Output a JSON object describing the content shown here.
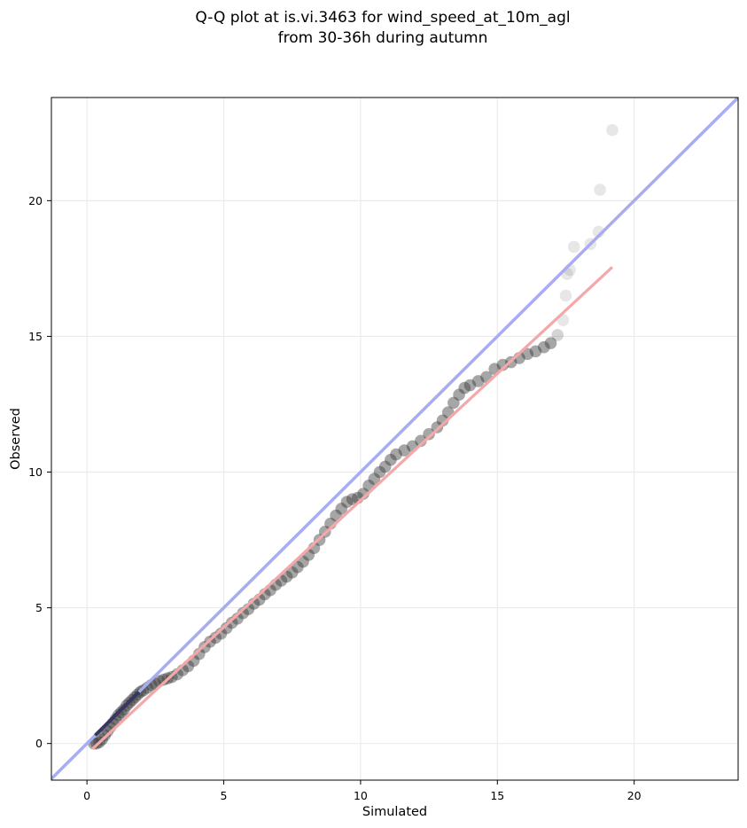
{
  "chart_data": {
    "type": "scatter",
    "title": [
      "Q-Q plot at is.vi.3463 for wind_speed_at_10m_agl",
      "from 30-36h during autumn"
    ],
    "xlabel": "Simulated",
    "ylabel": "Observed",
    "xlim": [
      -1.3,
      23.8
    ],
    "ylim": [
      -1.35,
      23.8
    ],
    "xticks": [
      0,
      5,
      10,
      15,
      20
    ],
    "yticks": [
      0,
      5,
      10,
      15,
      20
    ],
    "grid": true,
    "colors": {
      "points": "#3a3a3a",
      "diagonal": "#a8acf2",
      "fit": "#f4a8a8",
      "lower_segment": "#1a1a3c"
    },
    "identity_line": {
      "name": "",
      "slope": 1,
      "intercept": 0
    },
    "fit_line": {
      "name": "",
      "x": [
        0.2,
        19.2
      ],
      "y": [
        -0.2,
        17.55
      ]
    },
    "series": [
      {
        "name": "",
        "points": [
          [
            0.25,
            0.0
          ],
          [
            0.35,
            0.0
          ],
          [
            0.45,
            0.05
          ],
          [
            0.55,
            0.15
          ],
          [
            0.65,
            0.3
          ],
          [
            0.75,
            0.45
          ],
          [
            0.85,
            0.6
          ],
          [
            0.95,
            0.75
          ],
          [
            1.05,
            0.9
          ],
          [
            1.15,
            1.05
          ],
          [
            1.25,
            1.15
          ],
          [
            1.35,
            1.25
          ],
          [
            1.45,
            1.4
          ],
          [
            1.55,
            1.5
          ],
          [
            1.65,
            1.6
          ],
          [
            1.75,
            1.7
          ],
          [
            1.85,
            1.8
          ],
          [
            1.95,
            1.9
          ],
          [
            2.05,
            1.95
          ],
          [
            2.2,
            2.05
          ],
          [
            2.35,
            2.15
          ],
          [
            2.5,
            2.2
          ],
          [
            2.65,
            2.3
          ],
          [
            2.8,
            2.35
          ],
          [
            2.95,
            2.4
          ],
          [
            3.1,
            2.45
          ],
          [
            3.3,
            2.55
          ],
          [
            3.5,
            2.7
          ],
          [
            3.7,
            2.85
          ],
          [
            3.9,
            3.05
          ],
          [
            4.1,
            3.3
          ],
          [
            4.3,
            3.55
          ],
          [
            4.5,
            3.75
          ],
          [
            4.7,
            3.9
          ],
          [
            4.9,
            4.05
          ],
          [
            5.1,
            4.25
          ],
          [
            5.3,
            4.45
          ],
          [
            5.5,
            4.6
          ],
          [
            5.7,
            4.8
          ],
          [
            5.9,
            4.95
          ],
          [
            6.1,
            5.15
          ],
          [
            6.3,
            5.3
          ],
          [
            6.5,
            5.5
          ],
          [
            6.7,
            5.65
          ],
          [
            6.9,
            5.85
          ],
          [
            7.1,
            6.0
          ],
          [
            7.3,
            6.15
          ],
          [
            7.5,
            6.3
          ],
          [
            7.7,
            6.5
          ],
          [
            7.9,
            6.7
          ],
          [
            8.1,
            6.95
          ],
          [
            8.3,
            7.2
          ],
          [
            8.5,
            7.5
          ],
          [
            8.7,
            7.8
          ],
          [
            8.9,
            8.1
          ],
          [
            9.1,
            8.4
          ],
          [
            9.3,
            8.65
          ],
          [
            9.5,
            8.9
          ],
          [
            9.7,
            9.0
          ],
          [
            9.9,
            9.05
          ],
          [
            10.1,
            9.2
          ],
          [
            10.3,
            9.5
          ],
          [
            10.5,
            9.75
          ],
          [
            10.7,
            10.0
          ],
          [
            10.9,
            10.2
          ],
          [
            11.1,
            10.45
          ],
          [
            11.3,
            10.65
          ],
          [
            11.6,
            10.8
          ],
          [
            11.9,
            10.95
          ],
          [
            12.2,
            11.15
          ],
          [
            12.5,
            11.4
          ],
          [
            12.8,
            11.65
          ],
          [
            13.0,
            11.9
          ],
          [
            13.2,
            12.2
          ],
          [
            13.4,
            12.55
          ],
          [
            13.6,
            12.85
          ],
          [
            13.8,
            13.1
          ],
          [
            14.0,
            13.2
          ],
          [
            14.3,
            13.35
          ],
          [
            14.6,
            13.5
          ],
          [
            14.9,
            13.8
          ],
          [
            15.2,
            13.95
          ],
          [
            15.5,
            14.05
          ],
          [
            15.8,
            14.2
          ],
          [
            16.1,
            14.35
          ],
          [
            16.4,
            14.45
          ],
          [
            16.7,
            14.6
          ],
          [
            16.95,
            14.75
          ],
          [
            17.2,
            15.05
          ],
          [
            17.4,
            15.6
          ],
          [
            17.5,
            16.5
          ],
          [
            17.55,
            17.3
          ],
          [
            17.65,
            17.45
          ],
          [
            17.8,
            18.3
          ],
          [
            18.4,
            18.4
          ],
          [
            18.7,
            18.85
          ],
          [
            18.75,
            20.4
          ],
          [
            19.2,
            22.6
          ]
        ]
      }
    ]
  }
}
